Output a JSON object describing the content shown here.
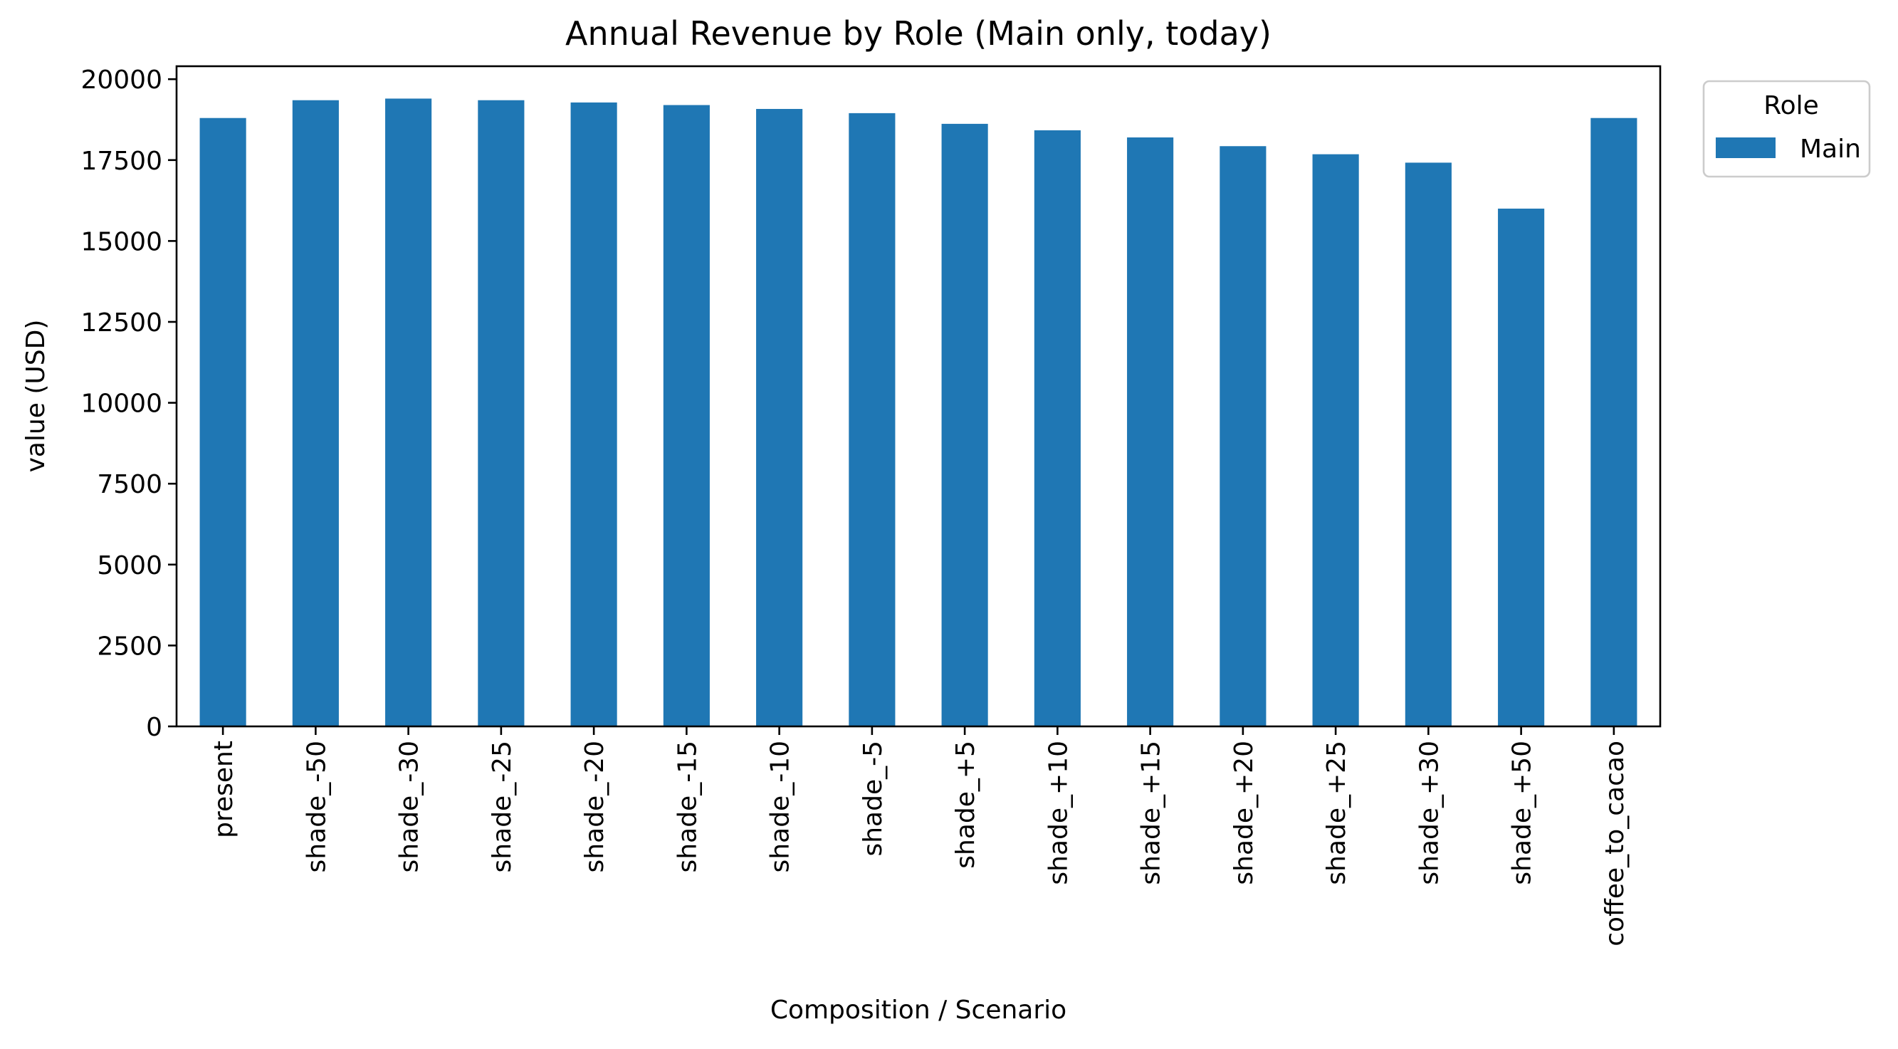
{
  "chart_data": {
    "type": "bar",
    "title": "Annual Revenue by Role (Main only, today)",
    "xlabel": "Composition / Scenario",
    "ylabel": "value (USD)",
    "categories": [
      "present",
      "shade_-50",
      "shade_-30",
      "shade_-25",
      "shade_-20",
      "shade_-15",
      "shade_-10",
      "shade_-5",
      "shade_+5",
      "shade_+10",
      "shade_+15",
      "shade_+20",
      "shade_+25",
      "shade_+30",
      "shade_+50",
      "coffee_to_cacao"
    ],
    "series": [
      {
        "name": "Main",
        "color": "#1f77b4",
        "values": [
          18800,
          19350,
          19400,
          19350,
          19280,
          19200,
          19080,
          18950,
          18620,
          18420,
          18200,
          17930,
          17680,
          17420,
          16000,
          18800
        ]
      }
    ],
    "ylim": [
      0,
      20400
    ],
    "yticks": [
      0,
      2500,
      5000,
      7500,
      10000,
      12500,
      15000,
      17500,
      20000
    ],
    "grid": false,
    "legend": {
      "title": "Role",
      "placement": "outside top-right"
    }
  }
}
